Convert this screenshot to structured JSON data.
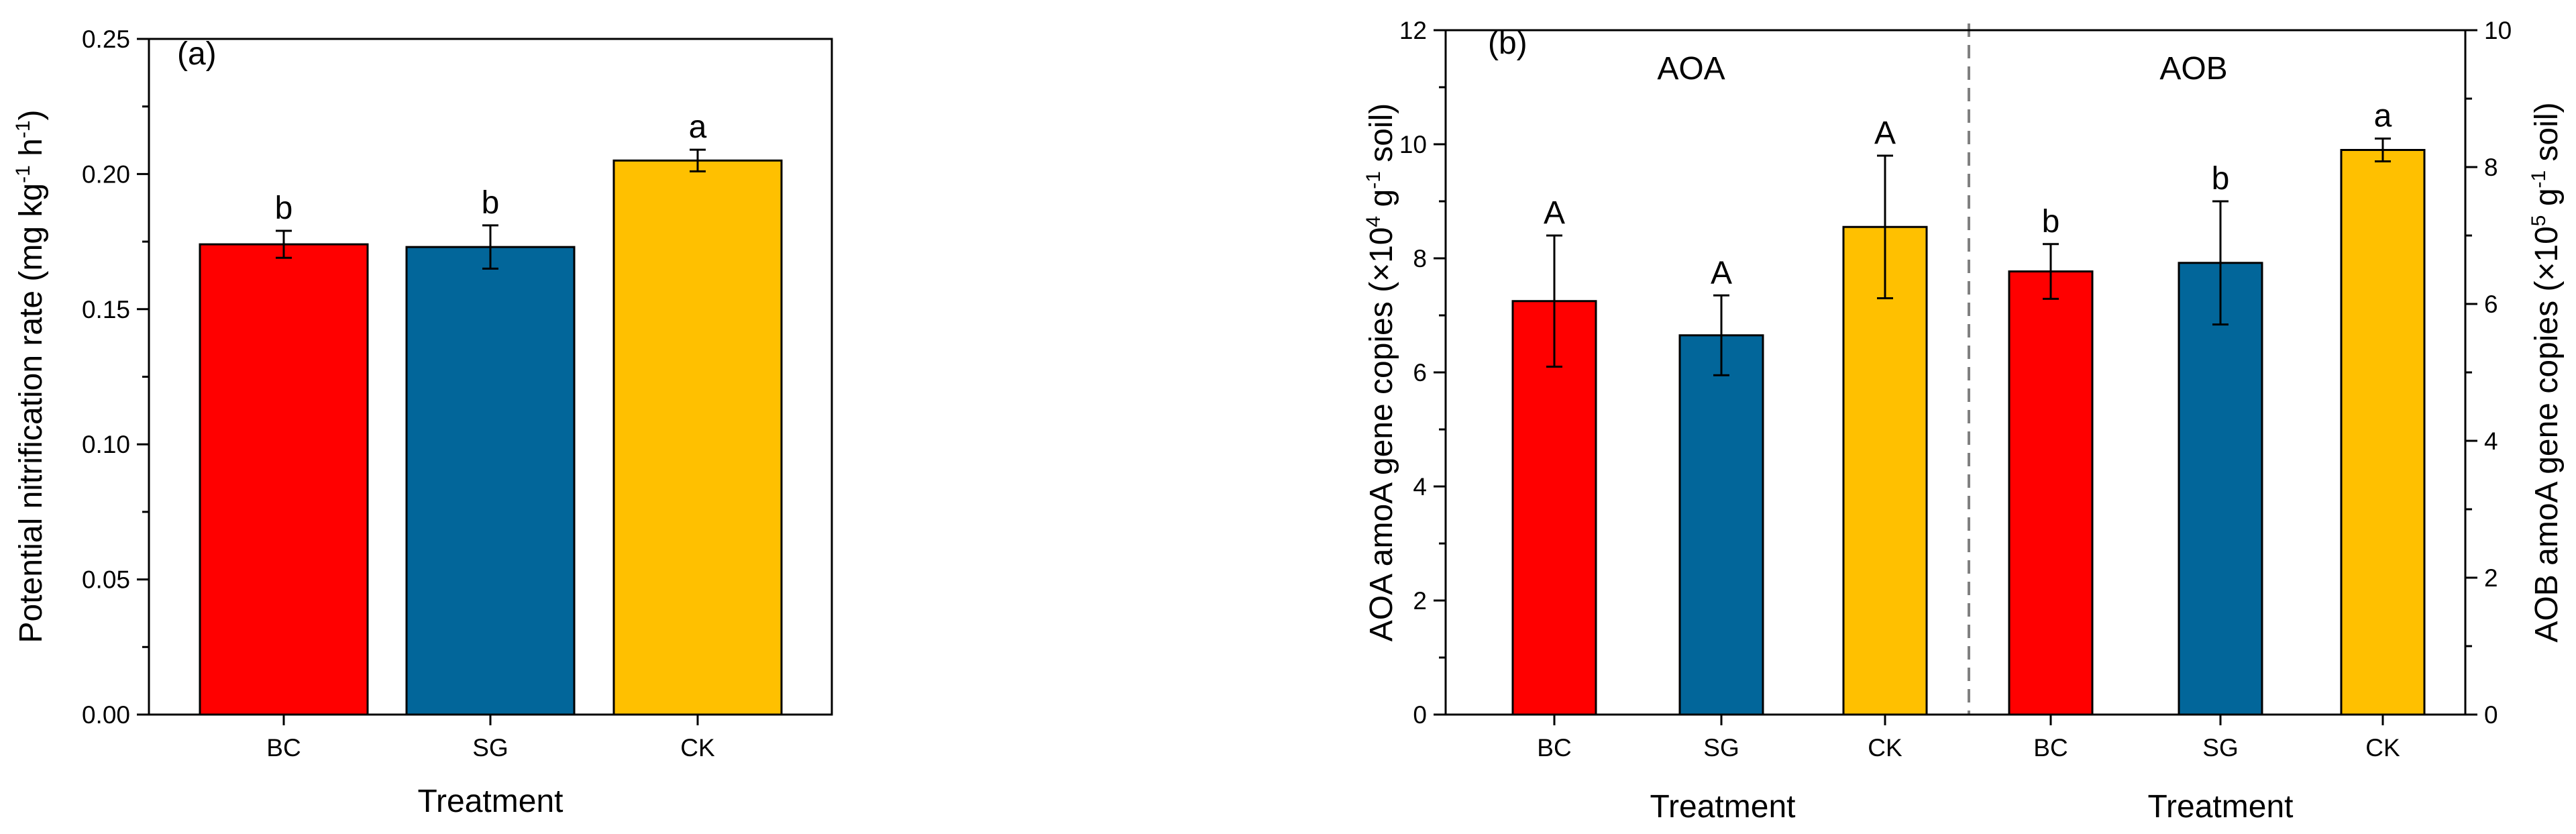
{
  "chart_data": [
    {
      "panel": "(a)",
      "type": "bar",
      "categories": [
        "BC",
        "SG",
        "CK"
      ],
      "values": [
        0.174,
        0.173,
        0.205
      ],
      "errors": [
        0.005,
        0.008,
        0.004
      ],
      "significance": [
        "b",
        "b",
        "a"
      ],
      "colors": [
        "#FF0000",
        "#02669A",
        "#FFC000"
      ],
      "xlabel": "Treatment",
      "ylabel": "Potential nitrification rate (mg kg",
      "ylabel_unit_kg_exp": "-1",
      "ylabel_h": " h",
      "ylabel_unit_h_exp": "-1",
      "ylabel_close": ")",
      "ylim": [
        0,
        0.25
      ],
      "yticks": [
        "0.00",
        "0.05",
        "0.10",
        "0.15",
        "0.20",
        "0.25"
      ]
    },
    {
      "panel": "(b)",
      "type": "bar",
      "categories": [
        "BC",
        "SG",
        "CK",
        "BC",
        "SG",
        "CK"
      ],
      "groups": [
        "AOA",
        "AOA",
        "AOA",
        "AOB",
        "AOB",
        "AOB"
      ],
      "group_labels": [
        "AOA",
        "AOB"
      ],
      "values_left_axis": [
        7.25,
        6.65,
        8.55,
        7.77,
        7.92,
        9.9
      ],
      "errors_left_axis": [
        1.15,
        0.7,
        1.25,
        0.48,
        1.08,
        0.2
      ],
      "significance": [
        "A",
        "A",
        "A",
        "b",
        "b",
        "a"
      ],
      "colors": [
        "#FF0000",
        "#02669A",
        "#FFC000",
        "#FF0000",
        "#02669A",
        "#FFC000"
      ],
      "xlabels": [
        "Treatment",
        "Treatment"
      ],
      "ylabel_left": "AOA amoA gene copies (×10",
      "ylabel_left_exp": "4",
      "ylabel_left_mid": " g",
      "ylabel_left_g_exp": "-1",
      "ylabel_left_end": " soil)",
      "ylabel_right": "AOB amoA gene copies (×10",
      "ylabel_right_exp": "5",
      "ylabel_right_mid": " g",
      "ylabel_right_g_exp": "-1",
      "ylabel_right_end": " soil)",
      "ylim_left": [
        0,
        12
      ],
      "ylim_right": [
        0,
        10
      ],
      "yticks_left": [
        "0",
        "2",
        "4",
        "6",
        "8",
        "10",
        "12"
      ],
      "yticks_right": [
        "0",
        "2",
        "4",
        "6",
        "8",
        "10"
      ]
    }
  ]
}
